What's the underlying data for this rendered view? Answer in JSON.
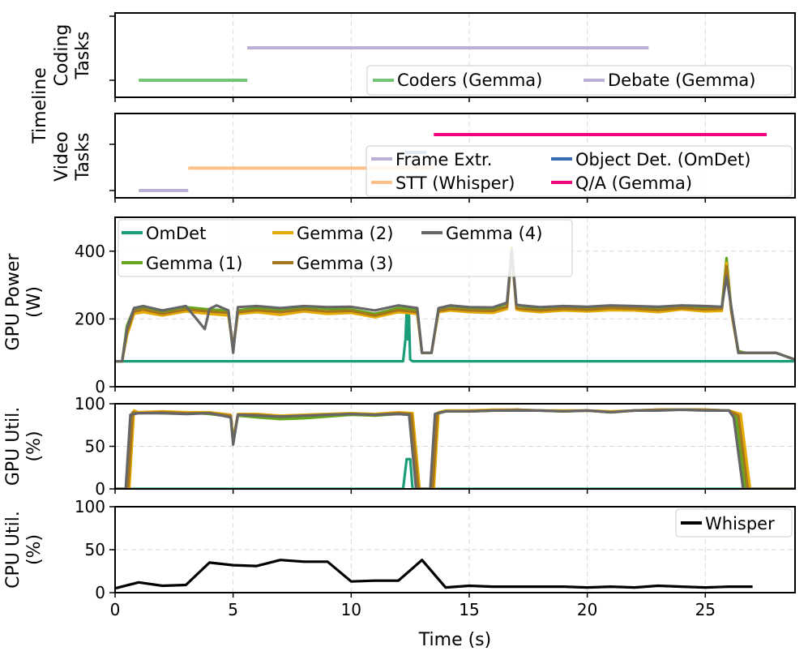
{
  "chart_data": [
    {
      "type": "line",
      "panel": "timeline-coding",
      "ylabel": "Coding\nTasks",
      "shared_ylabel": "Timeline",
      "series": [
        {
          "name": "Coders (Gemma)",
          "color": "#74c476",
          "start": 1.0,
          "end": 5.6,
          "level": 0
        },
        {
          "name": "Debate (Gemma)",
          "color": "#bcafd6",
          "start": 5.6,
          "end": 22.6,
          "level": 1
        }
      ],
      "legend": "bottom-right"
    },
    {
      "type": "line",
      "panel": "timeline-video",
      "ylabel": "Video\nTasks",
      "series": [
        {
          "name": "Frame Extr.",
          "color": "#bcafd6",
          "start": 1.0,
          "end": 3.1,
          "level": 0
        },
        {
          "name": "STT (Whisper)",
          "color": "#fdc086",
          "start": 3.1,
          "end": 13.5,
          "level": 1
        },
        {
          "name": "Object Det. (OmDet)",
          "color": "#386cb0",
          "start": 12.3,
          "end": 13.2,
          "level": 1.7
        },
        {
          "name": "Q/A (Gemma)",
          "color": "#f0027f",
          "start": 13.5,
          "end": 27.6,
          "level": 2.5
        }
      ],
      "legend": "bottom-right"
    },
    {
      "type": "line",
      "panel": "gpu-power",
      "ylabel": "GPU Power\n(W)",
      "ylim": [
        0,
        500
      ],
      "yticks": [
        "0",
        "200",
        "400"
      ],
      "legend": "upper-left",
      "series": [
        {
          "name": "OmDet",
          "color": "#1b9e77",
          "x": [
            0,
            12.2,
            12.3,
            12.35,
            12.4,
            12.45,
            12.5,
            12.6,
            28.8
          ],
          "y": [
            75,
            75,
            140,
            225,
            140,
            210,
            80,
            75,
            75
          ]
        },
        {
          "name": "Gemma (1)",
          "color": "#66a61e",
          "x": [
            0,
            0.3,
            0.5,
            0.8,
            1.2,
            2,
            3,
            4,
            4.8,
            5,
            5.2,
            6,
            7,
            8,
            9,
            10,
            11,
            12,
            12.8,
            13,
            13.4,
            13.7,
            14.2,
            15,
            16,
            16.6,
            16.8,
            17,
            17.2,
            18,
            19,
            20,
            21,
            22,
            23,
            24,
            25,
            25.7,
            25.9,
            26.1,
            26.4,
            26.7,
            27,
            28,
            28.8
          ],
          "y": [
            75,
            75,
            180,
            230,
            235,
            220,
            235,
            228,
            225,
            105,
            225,
            232,
            225,
            235,
            230,
            228,
            215,
            232,
            225,
            100,
            100,
            230,
            238,
            232,
            230,
            245,
            400,
            240,
            238,
            230,
            235,
            232,
            238,
            235,
            232,
            238,
            235,
            235,
            380,
            230,
            105,
            100,
            100,
            100,
            80
          ]
        },
        {
          "name": "Gemma (2)",
          "color": "#e6ab02",
          "x": [
            0,
            0.3,
            0.5,
            0.8,
            1.2,
            2,
            3,
            4,
            4.8,
            5,
            5.2,
            6,
            7,
            8,
            9,
            10,
            11,
            12,
            12.8,
            13,
            13.4,
            13.7,
            14.2,
            15,
            16,
            16.6,
            16.8,
            17,
            17.2,
            18,
            19,
            20,
            21,
            22,
            23,
            24,
            25,
            25.7,
            25.9,
            26.1,
            26.4,
            26.7,
            27,
            28,
            28.8
          ],
          "y": [
            75,
            75,
            150,
            215,
            220,
            210,
            222,
            215,
            210,
            110,
            215,
            220,
            212,
            222,
            215,
            218,
            205,
            220,
            215,
            100,
            100,
            220,
            225,
            220,
            218,
            230,
            410,
            228,
            225,
            220,
            225,
            222,
            226,
            225,
            220,
            228,
            222,
            224,
            365,
            220,
            100,
            100,
            100,
            100,
            80
          ]
        },
        {
          "name": "Gemma (3)",
          "color": "#a6761d",
          "x": [
            0,
            0.3,
            0.5,
            0.8,
            1.2,
            2,
            3,
            4,
            4.8,
            5,
            5.2,
            6,
            7,
            8,
            9,
            10,
            11,
            12,
            12.8,
            13,
            13.4,
            13.7,
            14.2,
            15,
            16,
            16.6,
            16.8,
            17,
            17.2,
            18,
            19,
            20,
            21,
            22,
            23,
            24,
            25,
            25.7,
            25.9,
            26.1,
            26.4,
            26.7,
            27,
            28,
            28.8
          ],
          "y": [
            75,
            75,
            160,
            222,
            228,
            215,
            228,
            222,
            218,
            115,
            220,
            226,
            220,
            228,
            222,
            224,
            210,
            226,
            220,
            100,
            100,
            224,
            230,
            225,
            224,
            236,
            395,
            232,
            230,
            225,
            230,
            227,
            232,
            230,
            226,
            232,
            228,
            230,
            355,
            225,
            100,
            100,
            100,
            100,
            80
          ]
        },
        {
          "name": "Gemma (4)",
          "color": "#666666",
          "x": [
            0,
            0.3,
            0.5,
            0.8,
            1.2,
            2,
            3,
            3.8,
            4,
            4.3,
            4.8,
            5,
            5.2,
            6,
            7,
            8,
            9,
            10,
            11,
            12,
            12.8,
            13,
            13.4,
            13.7,
            14.2,
            15,
            16,
            16.6,
            16.8,
            17,
            17.2,
            18,
            19,
            20,
            21,
            22,
            23,
            24,
            25,
            25.7,
            25.9,
            26.1,
            26.4,
            26.7,
            27,
            28,
            28.8
          ],
          "y": [
            75,
            75,
            170,
            232,
            238,
            225,
            238,
            170,
            230,
            240,
            225,
            100,
            235,
            238,
            232,
            238,
            235,
            236,
            225,
            240,
            232,
            100,
            100,
            232,
            240,
            235,
            234,
            248,
            405,
            242,
            240,
            235,
            238,
            236,
            240,
            238,
            236,
            240,
            238,
            236,
            325,
            236,
            100,
            100,
            100,
            100,
            80
          ]
        }
      ]
    },
    {
      "type": "line",
      "panel": "gpu-util",
      "ylabel": "GPU Util.\n(%)",
      "ylim": [
        0,
        100
      ],
      "yticks": [
        "0",
        "50",
        "100"
      ],
      "series": [
        {
          "name": "OmDet",
          "color": "#1b9e77",
          "x": [
            0,
            12.2,
            12.35,
            12.5,
            12.6,
            28.8
          ],
          "y": [
            0,
            0,
            35,
            35,
            0,
            0
          ]
        },
        {
          "name": "Gemma (1)",
          "color": "#66a61e",
          "x": [
            0,
            0.5,
            0.7,
            1,
            2,
            3,
            4,
            4.9,
            5,
            5.2,
            6,
            7,
            8,
            9,
            10,
            11,
            12,
            12.5,
            12.8,
            13.2,
            13.4,
            13.6,
            14,
            15,
            16,
            17,
            18,
            19,
            20,
            21,
            22,
            23,
            24,
            25,
            26,
            26.3,
            26.7,
            28.8
          ],
          "y": [
            0,
            0,
            88,
            90,
            89,
            90,
            88,
            85,
            55,
            86,
            84,
            82,
            83,
            85,
            87,
            86,
            88,
            87,
            0,
            0,
            0,
            88,
            91,
            91,
            92,
            93,
            92,
            91,
            92,
            90,
            92,
            93,
            93,
            93,
            92,
            85,
            0,
            0
          ]
        },
        {
          "name": "Gemma (2)",
          "color": "#e6ab02",
          "x": [
            0,
            0.6,
            0.8,
            1,
            2,
            3,
            4,
            4.9,
            5,
            5.2,
            6,
            7,
            8,
            9,
            10,
            11,
            12,
            12.6,
            12.9,
            13.3,
            13.5,
            13.7,
            14,
            15,
            16,
            17,
            18,
            19,
            20,
            21,
            22,
            23,
            24,
            25,
            26,
            26.5,
            26.9,
            28.8
          ],
          "y": [
            0,
            0,
            92,
            90,
            91,
            90,
            90,
            87,
            58,
            88,
            88,
            86,
            87,
            88,
            89,
            88,
            90,
            89,
            0,
            0,
            0,
            90,
            92,
            92,
            93,
            93,
            92,
            92,
            92,
            91,
            92,
            93,
            93,
            93,
            92,
            88,
            0,
            0
          ]
        },
        {
          "name": "Gemma (3)",
          "color": "#a6761d",
          "x": [
            0,
            0.55,
            0.75,
            1,
            2,
            3,
            4,
            4.9,
            5,
            5.2,
            6,
            7,
            8,
            9,
            10,
            11,
            12,
            12.55,
            12.85,
            13.25,
            13.45,
            13.65,
            14,
            15,
            16,
            17,
            18,
            19,
            20,
            21,
            22,
            23,
            24,
            25,
            26,
            26.4,
            26.8,
            28.8
          ],
          "y": [
            0,
            0,
            90,
            89,
            90,
            89,
            89,
            86,
            56,
            87,
            87,
            85,
            86,
            87,
            88,
            87,
            89,
            88,
            0,
            0,
            0,
            89,
            91,
            91,
            92,
            93,
            92,
            91,
            92,
            90,
            92,
            93,
            93,
            93,
            92,
            86,
            0,
            0
          ]
        },
        {
          "name": "Gemma (4)",
          "color": "#666666",
          "x": [
            0,
            0.45,
            0.65,
            1,
            2,
            3,
            4,
            4.9,
            5,
            5.2,
            6,
            7,
            8,
            9,
            10,
            11,
            12,
            12.45,
            12.75,
            13.15,
            13.35,
            13.55,
            14,
            15,
            16,
            17,
            18,
            19,
            20,
            21,
            22,
            23,
            24,
            25,
            26,
            26.2,
            26.6,
            28.8
          ],
          "y": [
            0,
            0,
            87,
            89,
            89,
            88,
            89,
            84,
            52,
            87,
            86,
            85,
            86,
            87,
            88,
            87,
            88,
            87,
            0,
            0,
            0,
            88,
            91,
            91,
            92,
            92,
            92,
            91,
            92,
            90,
            92,
            92,
            93,
            92,
            92,
            84,
            0,
            0
          ]
        }
      ]
    },
    {
      "type": "line",
      "panel": "cpu-util",
      "ylabel": "CPU Util.\n(%)",
      "xlabel": "Time (s)",
      "ylim": [
        0,
        100
      ],
      "yticks": [
        "0",
        "50",
        "100"
      ],
      "xlim": [
        0,
        28.8
      ],
      "xticks": [
        "0",
        "5",
        "10",
        "15",
        "20",
        "25"
      ],
      "legend": "upper-right",
      "series": [
        {
          "name": "Whisper",
          "color": "#000000",
          "x": [
            0,
            1,
            2,
            3,
            4,
            5,
            6,
            7,
            8,
            9,
            10,
            11,
            12,
            13,
            14,
            15,
            16,
            17,
            18,
            19,
            20,
            21,
            22,
            23,
            24,
            25,
            26,
            27
          ],
          "y": [
            5,
            12,
            8,
            9,
            35,
            32,
            31,
            38,
            36,
            36,
            13,
            14,
            14,
            38,
            6,
            8,
            7,
            7,
            7,
            7,
            6,
            7,
            6,
            8,
            7,
            6,
            7,
            7
          ]
        }
      ]
    }
  ]
}
